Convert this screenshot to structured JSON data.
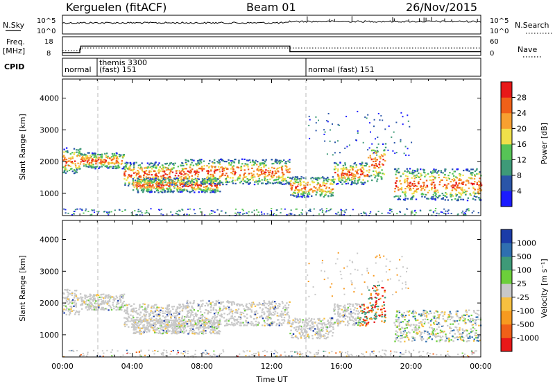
{
  "header": {
    "station": "Kerguelen (fitACF)",
    "beam": "Beam 01",
    "date": "26/Nov/2015"
  },
  "noise_panel": {
    "left_label": "N.Sky",
    "right_label": "N.Search",
    "left_ticks": [
      "10^5",
      "10^0"
    ],
    "right_ticks": [
      "10^5",
      "10^0"
    ]
  },
  "freq_panel": {
    "left_label_line1": "Freq.",
    "left_label_line2": "[MHz]",
    "right_label": "Nave",
    "left_ticks": [
      "18",
      "8"
    ],
    "right_ticks": [
      "60",
      "0"
    ],
    "freq_steps": [
      {
        "t": 0.0,
        "f": 9.5
      },
      {
        "t": 0.5,
        "f": 9.5
      },
      {
        "t": 1.0,
        "f": 11.5
      },
      {
        "t": 1.05,
        "f": 13.0
      },
      {
        "t": 13.0,
        "f": 13.0
      },
      {
        "t": 13.05,
        "f": 10.0
      },
      {
        "t": 24.0,
        "f": 10.0
      }
    ],
    "nave_level": 12.0
  },
  "cpid_panel": {
    "label": "CPID",
    "segments": [
      {
        "t": 0.0,
        "text": "normal",
        "text2": ""
      },
      {
        "t": 1.8,
        "text": "themis 3300",
        "text2": "(fast) 151"
      },
      {
        "t": 13.0,
        "text": "normal (fast) 151",
        "text2": ""
      }
    ]
  },
  "time_axis": {
    "label": "Time UT",
    "ticks": [
      "00:00",
      "04:00",
      "08:00",
      "12:00",
      "16:00",
      "20:00",
      "00:00"
    ],
    "range_hours": [
      0,
      24
    ]
  },
  "power_panel": {
    "ylabel": "Slant Range [km]",
    "yticks": [
      "1000",
      "2000",
      "3000",
      "4000"
    ],
    "colorbar_label": "Power [dB]",
    "colorbar_ticks": [
      "4",
      "8",
      "12",
      "16",
      "20",
      "24",
      "28"
    ],
    "colors": [
      "#1b1bff",
      "#2a55a8",
      "#3e9a78",
      "#56c456",
      "#f0e04a",
      "#f7a030",
      "#f06018",
      "#e81818"
    ]
  },
  "velocity_panel": {
    "ylabel": "Slant Range [km]",
    "yticks": [
      "1000",
      "2000",
      "3000",
      "4000"
    ],
    "colorbar_label": "Velocity [m s⁻¹]",
    "colorbar_ticks": [
      "1000",
      "500",
      "100",
      "25",
      "-25",
      "-100",
      "-500",
      "-1000"
    ],
    "colors": [
      "#1b3ca8",
      "#2f6fb0",
      "#3e9a78",
      "#6ccf3a",
      "#c8c8c8",
      "#f7c040",
      "#f79a20",
      "#f06018",
      "#e81818"
    ]
  },
  "chart_data": {
    "type": "heatmap",
    "x_range_hours": [
      0,
      24
    ],
    "y_range_km": [
      300,
      4600
    ],
    "bands": [
      {
        "t0": 0.0,
        "t1": 1.0,
        "r0": 1650,
        "r1": 2450
      },
      {
        "t0": 1.0,
        "t1": 3.5,
        "r0": 1800,
        "r1": 2300
      },
      {
        "t0": 3.5,
        "t1": 7.0,
        "r0": 1250,
        "r1": 2000
      },
      {
        "t0": 4.0,
        "t1": 9.0,
        "r0": 1050,
        "r1": 1500
      },
      {
        "t0": 7.0,
        "t1": 13.0,
        "r0": 1300,
        "r1": 2100
      },
      {
        "t0": 13.0,
        "t1": 15.5,
        "r0": 900,
        "r1": 1550
      },
      {
        "t0": 15.5,
        "t1": 17.5,
        "r0": 1300,
        "r1": 2000
      },
      {
        "t0": 17.5,
        "t1": 18.5,
        "r0": 1400,
        "r1": 2600
      },
      {
        "t0": 19.0,
        "t1": 24.0,
        "r0": 800,
        "r1": 1800
      }
    ]
  }
}
